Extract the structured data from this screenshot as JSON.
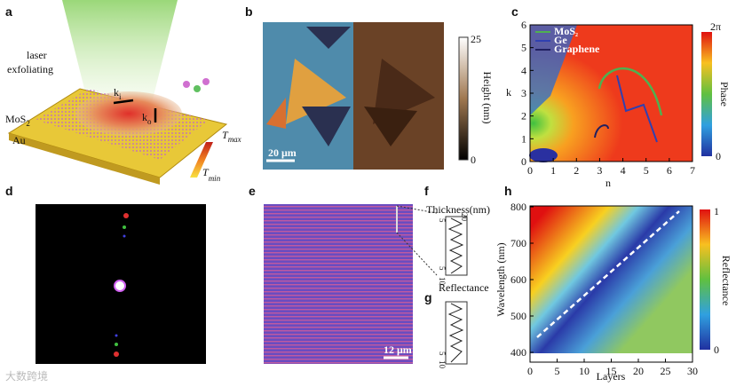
{
  "panel_labels": [
    "a",
    "b",
    "c",
    "d",
    "e",
    "f",
    "g",
    "h"
  ],
  "a": {
    "laser": "laser",
    "exfoliating": "exfoliating",
    "ki": {
      "base": "k",
      "sub": "i"
    },
    "ko": {
      "base": "k",
      "sub": "o"
    },
    "mos2": {
      "base": "MoS",
      "sub": "2"
    },
    "au": "Au",
    "tmax": {
      "base": "T",
      "sub": "max"
    },
    "tmin": {
      "base": "T",
      "sub": "min"
    }
  },
  "b": {
    "scale_bar": "20 μm",
    "colorbar_label": "Height (nm)",
    "colorbar_top": "25",
    "colorbar_bottom": "0"
  },
  "c": {
    "x_label": "n",
    "y_label": "k",
    "x_ticks": [
      0,
      1,
      2,
      3,
      4,
      5,
      6,
      7
    ],
    "y_ticks": [
      0,
      1,
      2,
      3,
      4,
      5,
      6
    ],
    "legend": [
      {
        "base": "MoS",
        "sub": "2"
      },
      {
        "base": "Ge",
        "sub": ""
      },
      {
        "base": "Graphene",
        "sub": ""
      }
    ],
    "colorbar_label": "Phase",
    "colorbar_top": "2π",
    "colorbar_bottom": "0"
  },
  "e": {
    "scale_bar": "12 μm"
  },
  "f": {
    "title": "Thickness(nm)",
    "ticks_top": [
      "5",
      "20"
    ],
    "ticks_bottom": [
      "5",
      "10"
    ]
  },
  "g": {
    "title": "Reflectance",
    "ticks_bottom": [
      "5",
      "10"
    ]
  },
  "h": {
    "x_label": "Layers",
    "y_label": "Wavelength (nm)",
    "x_ticks": [
      0,
      5,
      10,
      15,
      20,
      25,
      30
    ],
    "y_ticks": [
      400,
      500,
      600,
      700,
      800
    ],
    "colorbar_label": "Reflectance",
    "colorbar_top": "1",
    "colorbar_bottom": "0"
  },
  "watermark": "大数跨境"
}
